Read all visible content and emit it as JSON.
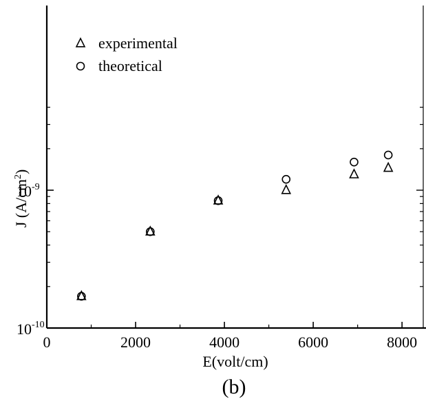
{
  "chart_data": {
    "type": "scatter",
    "title": "",
    "xlabel": "E(volt/cm)",
    "ylabel_main": "J (A/cm",
    "ylabel_sup": "2",
    "ylabel_close": ")",
    "caption": "(b)",
    "xlim": [
      0,
      8500
    ],
    "ylim": [
      1e-10,
      5e-09
    ],
    "yscale": "log",
    "x_ticks": [
      0,
      2000,
      4000,
      6000,
      8000
    ],
    "x_tick_labels": [
      "0",
      "2000",
      "4000",
      "6000",
      "8000"
    ],
    "y_ticks": [
      {
        "value": 1e-09,
        "base": "10",
        "exp": "-9"
      },
      {
        "value": 1e-10,
        "base": "10",
        "exp": "-10"
      }
    ],
    "grid": false,
    "legend_position": "top-left",
    "series": [
      {
        "name": "experimental",
        "marker": "triangle",
        "x": [
          780,
          2330,
          3860,
          5390,
          6920,
          7690
        ],
        "y": [
          1.7e-10,
          5e-10,
          8.4e-10,
          1e-09,
          1.3e-09,
          1.45e-09
        ]
      },
      {
        "name": "theoretical",
        "marker": "circle",
        "x": [
          780,
          2330,
          3860,
          5390,
          6920,
          7690
        ],
        "y": [
          1.7e-10,
          5e-10,
          8.4e-10,
          1.2e-09,
          1.6e-09,
          1.8e-09
        ]
      }
    ]
  }
}
